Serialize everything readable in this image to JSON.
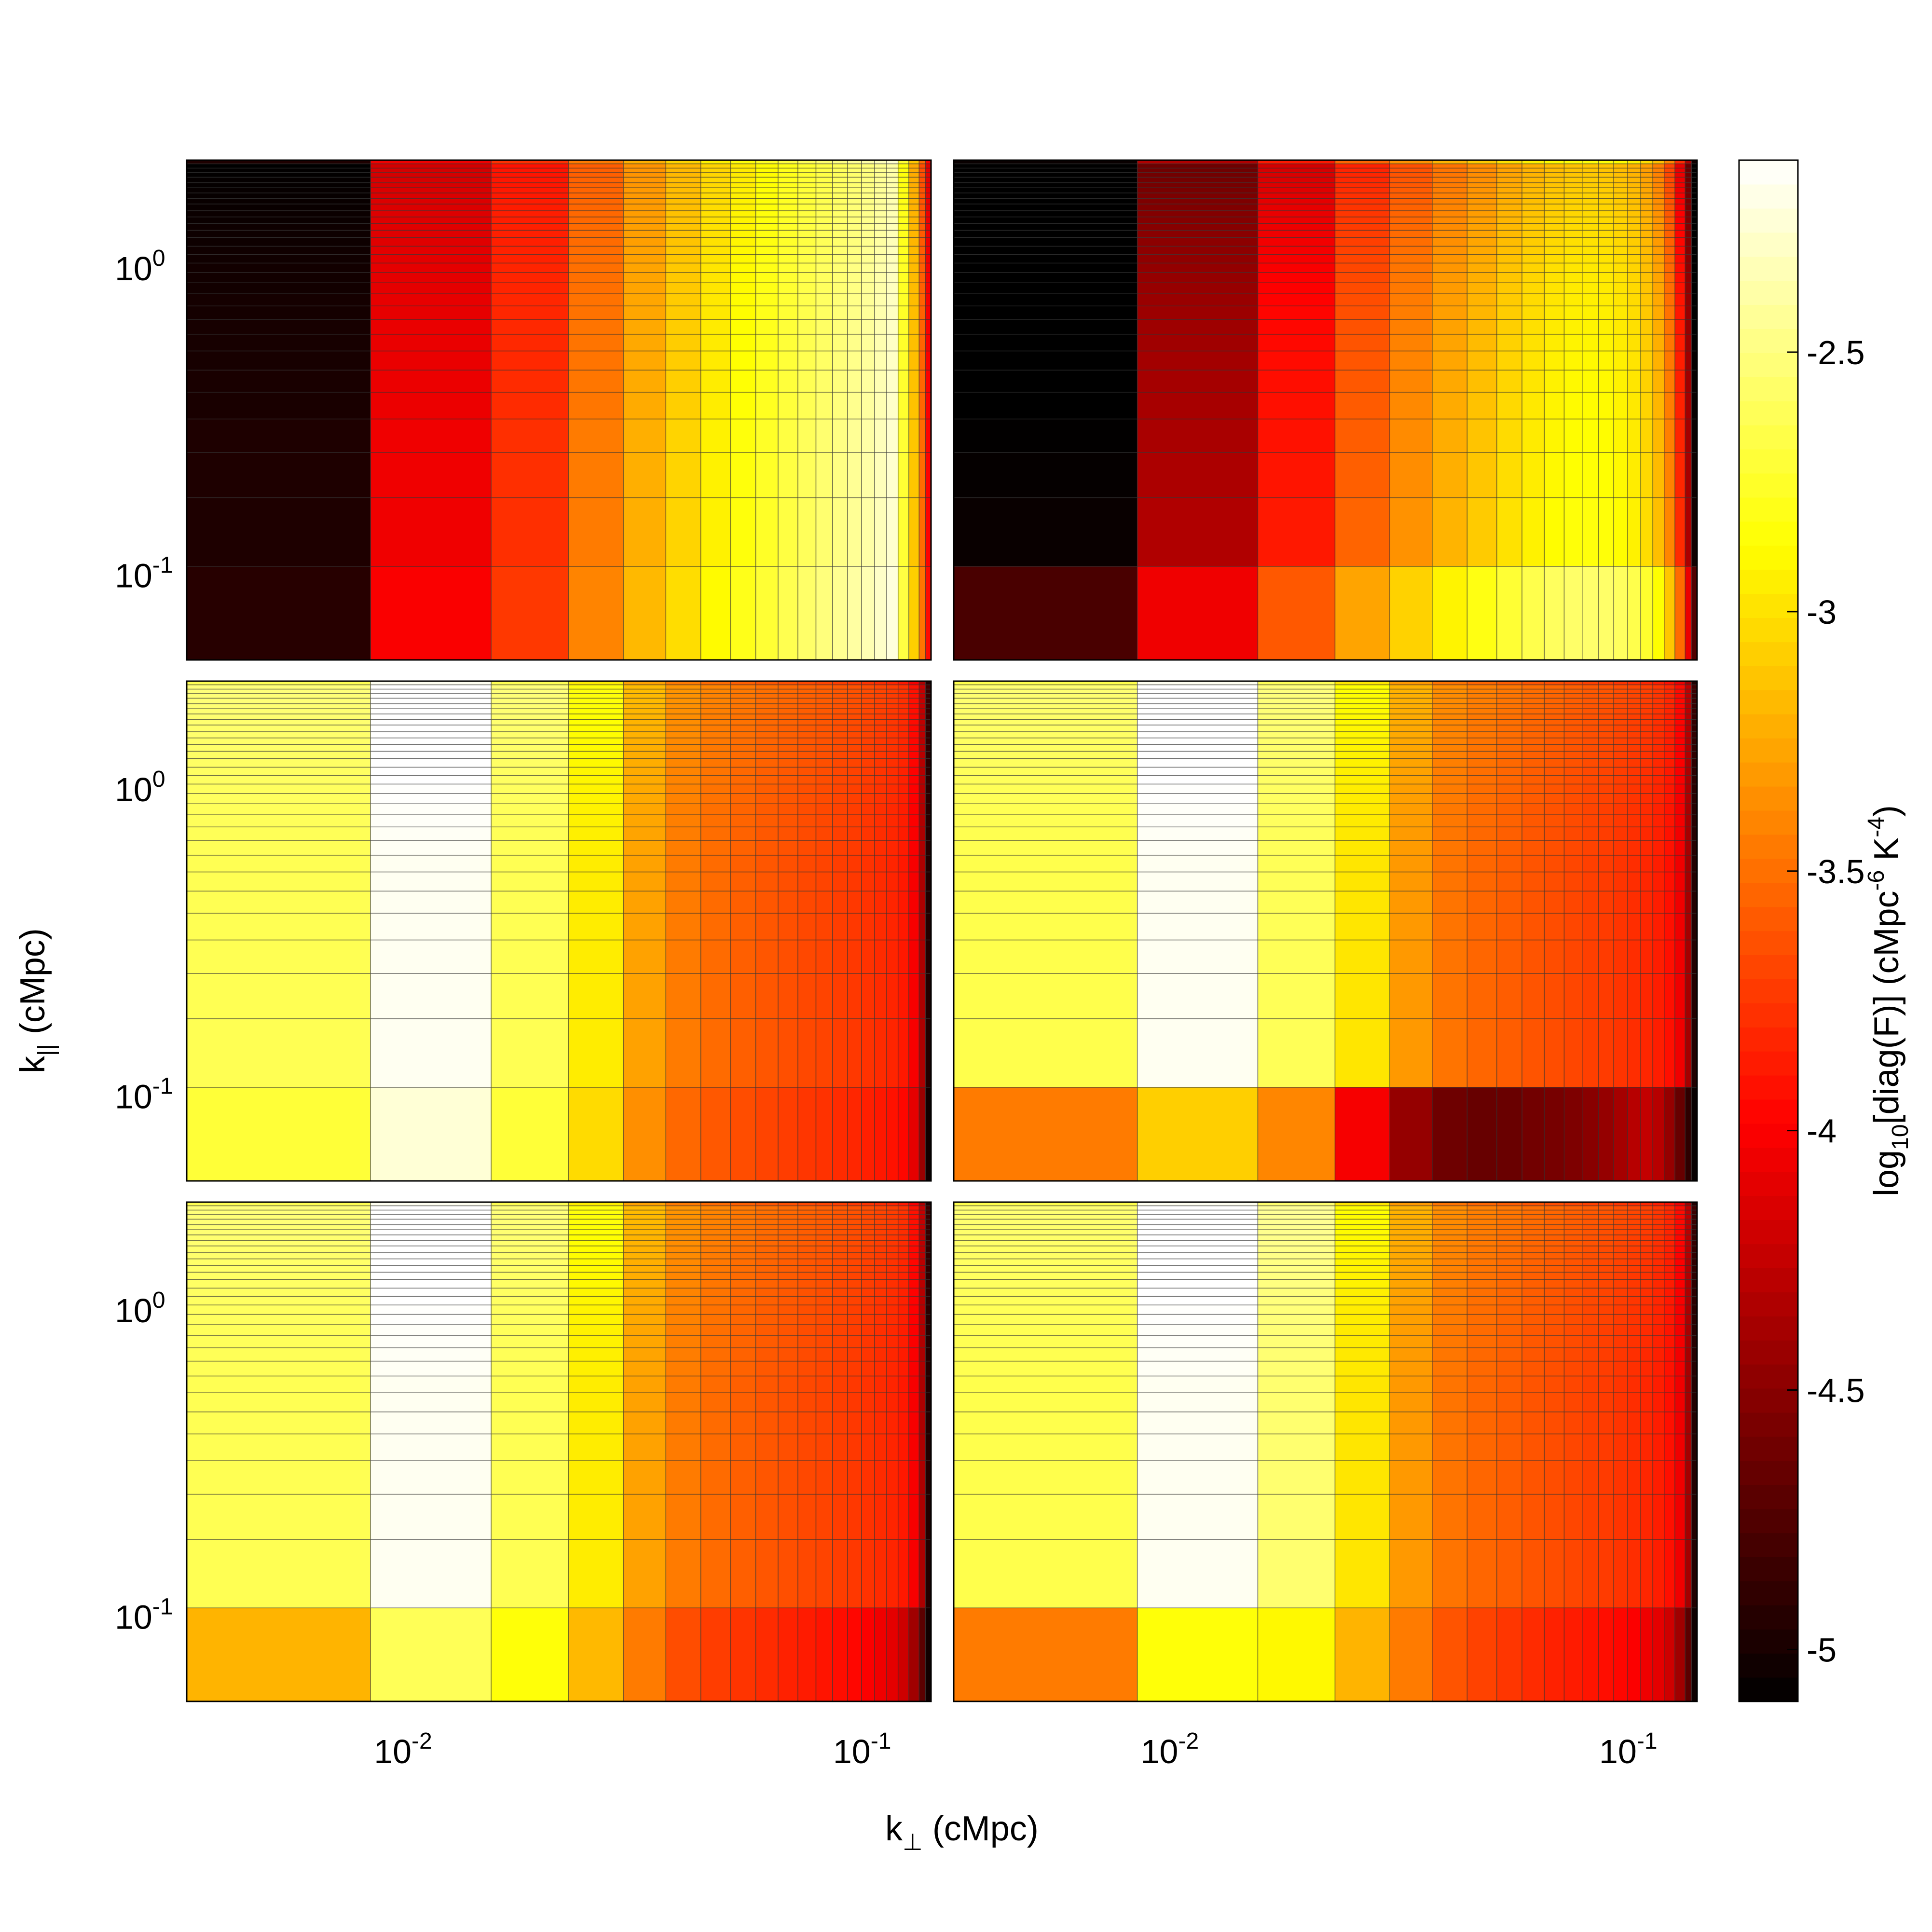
{
  "chart_data": {
    "type": "heatmap",
    "layout": "3 rows x 2 columns of panels sharing axes, with one shared colorbar",
    "x_axis": {
      "label": "k",
      "label_subscript": "⊥",
      "label_unit": " (cMpc)",
      "scale": "log",
      "range": [
        0.0033,
        0.138
      ],
      "ticks": [
        {
          "value": 0.01,
          "base": "10",
          "exp": "-2"
        },
        {
          "value": 0.1,
          "base": "10",
          "exp": "-1"
        }
      ],
      "bin_edges": [
        0.0033,
        0.0083,
        0.0152,
        0.0224,
        0.0295,
        0.0365,
        0.0435,
        0.0505,
        0.0573,
        0.0641,
        0.0708,
        0.0775,
        0.0842,
        0.0908,
        0.0974,
        0.104,
        0.1105,
        0.117,
        0.1235,
        0.13,
        0.1343,
        0.138
      ]
    },
    "y_axis": {
      "label": "k",
      "label_subscript": "||",
      "label_unit": " (cMpc)",
      "scale": "log",
      "range": [
        0.053,
        2.25
      ],
      "ticks": [
        {
          "value": 0.1,
          "base": "10",
          "exp": "-1"
        },
        {
          "value": 1,
          "base": "10",
          "exp": "0"
        }
      ],
      "bin_edges": [
        0.053,
        0.107,
        0.179,
        0.251,
        0.323,
        0.395,
        0.466,
        0.538,
        0.61,
        0.682,
        0.754,
        0.826,
        0.897,
        0.969,
        1.04,
        1.11,
        1.18,
        1.26,
        1.33,
        1.4,
        1.47,
        1.54,
        1.62,
        1.69,
        1.76,
        1.83,
        1.9,
        1.98,
        2.05,
        2.12,
        2.19,
        2.25
      ]
    },
    "colorbar": {
      "label": "log",
      "label_sub": "10",
      "label_mid": "[diag(F)]  (cMpc",
      "label_sup1": "-6",
      "label_mid2": " K",
      "label_sup2": "-4",
      "label_end": ")",
      "range": [
        -5.1,
        -2.13
      ],
      "ticks": [
        "-5",
        "-4.5",
        "-4",
        "-3.5",
        "-3",
        "-2.5"
      ],
      "tick_values": [
        -5,
        -4.5,
        -4,
        -3.5,
        -3,
        -2.5
      ],
      "colormap": "hot"
    },
    "panels": [
      {
        "position": "top-left",
        "column_values": [
          -4.97,
          -4.05,
          -3.78,
          -3.45,
          -3.22,
          -3.06,
          -2.93,
          -2.84,
          -2.76,
          -2.68,
          -2.61,
          -2.55,
          -2.49,
          -2.44,
          -2.39,
          -2.33,
          -2.27,
          -2.72,
          -3.12,
          -3.52,
          -3.98
        ],
        "row_offsets": [
          0.04,
          0.0,
          0.0,
          0.0,
          -0.02,
          -0.02,
          -0.03,
          -0.03,
          -0.03,
          -0.04,
          -0.04,
          -0.05,
          -0.05,
          -0.05,
          -0.06,
          -0.06,
          -0.07,
          -0.07,
          -0.07,
          -0.08,
          -0.08,
          -0.09,
          -0.09,
          -0.1,
          -0.1,
          -0.11,
          -0.11,
          -0.12,
          -0.12,
          -0.13
        ]
      },
      {
        "position": "top-right",
        "column_values": [
          -5.06,
          -4.33,
          -3.88,
          -3.55,
          -3.35,
          -3.2,
          -3.1,
          -3.0,
          -2.93,
          -2.88,
          -2.85,
          -2.84,
          -2.85,
          -2.88,
          -2.93,
          -3.02,
          -3.15,
          -3.4,
          -3.8,
          -4.35,
          -5.02
        ],
        "row_offsets": [
          0.28,
          0.0,
          -0.02,
          -0.03,
          -0.04,
          -0.05,
          -0.06,
          -0.07,
          -0.08,
          -0.09,
          -0.1,
          -0.11,
          -0.12,
          -0.13,
          -0.14,
          -0.15,
          -0.16,
          -0.17,
          -0.18,
          -0.19,
          -0.2,
          -0.21,
          -0.22,
          -0.23,
          -0.24,
          -0.25,
          -0.26,
          -0.27,
          -0.28,
          -0.29
        ]
      },
      {
        "position": "middle-left",
        "column_values": [
          -2.63,
          -2.17,
          -2.63,
          -2.95,
          -3.28,
          -3.45,
          -3.52,
          -3.57,
          -3.61,
          -3.64,
          -3.67,
          -3.69,
          -3.72,
          -3.74,
          -3.77,
          -3.8,
          -3.83,
          -3.88,
          -4.02,
          -4.35,
          -4.95
        ],
        "row_offsets": [
          -0.08,
          0.0,
          0.0,
          0.0,
          0.0,
          0.0,
          0.0,
          0.0,
          0.01,
          0.01,
          0.02,
          0.02,
          0.03,
          0.03,
          0.04,
          0.04,
          0.05,
          0.05,
          0.06,
          0.06,
          0.07,
          0.07,
          0.08,
          0.08,
          0.09,
          0.09,
          0.1,
          0.1,
          0.11,
          0.11
        ]
      },
      {
        "position": "middle-right",
        "column_values": [
          -2.65,
          -2.17,
          -2.62,
          -2.98,
          -3.32,
          -3.48,
          -3.54,
          -3.58,
          -3.62,
          -3.65,
          -3.68,
          -3.71,
          -3.73,
          -3.76,
          -3.79,
          -3.82,
          -3.86,
          -3.92,
          -4.05,
          -4.38,
          -4.95
        ],
        "row_offsets": [
          null,
          0.0,
          0.0,
          0.0,
          0.0,
          0.0,
          0.0,
          0.0,
          0.01,
          0.01,
          0.02,
          0.02,
          0.03,
          0.03,
          0.04,
          0.04,
          0.05,
          0.05,
          0.06,
          0.06,
          0.07,
          0.07,
          0.08,
          0.08,
          0.09,
          0.09,
          0.1,
          0.1,
          0.11,
          0.11
        ],
        "bottom_row_values": [
          -3.45,
          -3.08,
          -3.4,
          -4.02,
          -4.45,
          -4.62,
          -4.65,
          -4.64,
          -4.6,
          -4.58,
          -4.55,
          -4.5,
          -4.45,
          -4.38,
          -4.3,
          -4.25,
          -4.3,
          -4.45,
          -4.65,
          -4.9,
          -5.06
        ]
      },
      {
        "position": "bottom-left",
        "column_values": [
          -2.63,
          -2.17,
          -2.63,
          -2.95,
          -3.28,
          -3.45,
          -3.52,
          -3.57,
          -3.61,
          -3.64,
          -3.67,
          -3.69,
          -3.72,
          -3.74,
          -3.77,
          -3.8,
          -3.83,
          -3.88,
          -4.02,
          -4.35,
          -4.95
        ],
        "row_offsets": [
          null,
          0.0,
          0.0,
          0.0,
          0.0,
          0.0,
          0.0,
          0.0,
          0.01,
          0.01,
          0.02,
          0.02,
          0.03,
          0.03,
          0.04,
          0.04,
          0.05,
          0.05,
          0.06,
          0.06,
          0.07,
          0.07,
          0.08,
          0.08,
          0.09,
          0.09,
          0.1,
          0.1,
          0.11,
          0.11
        ],
        "bottom_row_values": [
          -3.2,
          -2.62,
          -2.85,
          -3.18,
          -3.45,
          -3.65,
          -3.72,
          -3.76,
          -3.8,
          -3.84,
          -3.87,
          -3.9,
          -3.93,
          -3.96,
          -4.0,
          -4.05,
          -4.1,
          -4.2,
          -4.4,
          -4.7,
          -5.02
        ]
      },
      {
        "position": "bottom-right",
        "column_values": [
          -2.65,
          -2.17,
          -2.55,
          -2.98,
          -3.32,
          -3.48,
          -3.54,
          -3.58,
          -3.62,
          -3.65,
          -3.68,
          -3.71,
          -3.73,
          -3.76,
          -3.79,
          -3.82,
          -3.86,
          -3.92,
          -4.05,
          -4.38,
          -4.95
        ],
        "row_offsets": [
          null,
          0.0,
          0.0,
          0.0,
          0.0,
          0.0,
          0.0,
          0.0,
          0.01,
          0.01,
          0.02,
          0.02,
          0.03,
          0.03,
          0.04,
          0.04,
          0.05,
          0.05,
          0.06,
          0.06,
          0.07,
          0.07,
          0.08,
          0.08,
          0.09,
          0.09,
          0.1,
          0.1,
          0.11,
          0.11
        ],
        "bottom_row_values": [
          -3.45,
          -2.85,
          -2.9,
          -3.2,
          -3.45,
          -3.62,
          -3.7,
          -3.75,
          -3.8,
          -3.84,
          -3.87,
          -3.9,
          -3.93,
          -3.96,
          -4.0,
          -4.05,
          -4.1,
          -4.2,
          -4.4,
          -4.7,
          -5.03
        ]
      }
    ]
  }
}
